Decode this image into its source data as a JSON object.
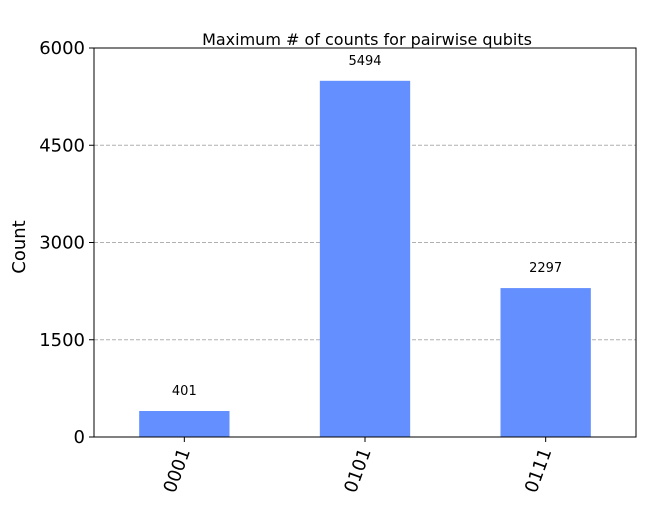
{
  "chart_data": {
    "type": "bar",
    "title": "Maximum # of counts for pairwise qubits",
    "xlabel": "",
    "ylabel": "Count",
    "categories": [
      "0001",
      "0101",
      "0111"
    ],
    "values": [
      401,
      5494,
      2297
    ],
    "value_labels": [
      "401",
      "5494",
      "2297"
    ],
    "ylim": [
      0,
      6000
    ],
    "yticks": [
      0,
      1500,
      3000,
      4500,
      6000
    ],
    "ytick_labels": [
      "0",
      "1500",
      "3000",
      "4500",
      "6000"
    ],
    "grid": "y-dashed",
    "bar_color": "#648fff"
  }
}
